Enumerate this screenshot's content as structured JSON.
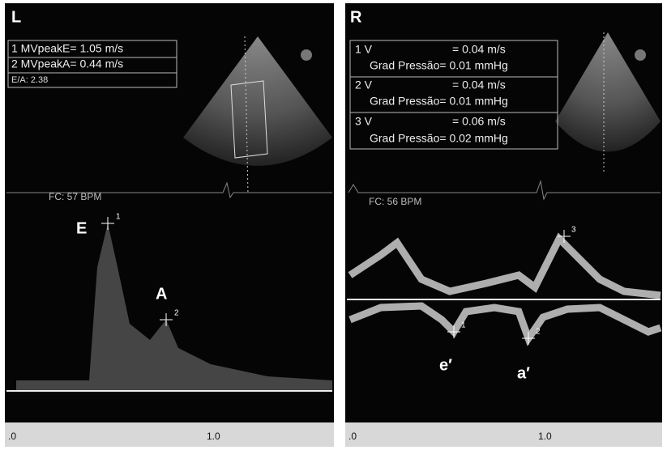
{
  "left": {
    "label": "L",
    "measurements": [
      "1 MVpeakE= 1.05 m/s",
      "2 MVpeakA= 0.44 m/s"
    ],
    "ratio": "E/A:  2.38",
    "heart_rate": "FC: 57 BPM",
    "peaks": [
      "E",
      "A"
    ],
    "markers": [
      "1",
      "2"
    ],
    "axis_ticks": [
      ".0",
      "1.0"
    ]
  },
  "right": {
    "label": "R",
    "measurements": [
      {
        "velocity": "1 V",
        "velocity_value": "= 0.04 m/s",
        "gradient": "Grad Pressão= 0.01 mmHg"
      },
      {
        "velocity": "2 V",
        "velocity_value": "= 0.04 m/s",
        "gradient": "Grad Pressão= 0.01 mmHg"
      },
      {
        "velocity": "3 V",
        "velocity_value": "= 0.06 m/s",
        "gradient": "Grad Pressão= 0.02 mmHg"
      }
    ],
    "heart_rate": "FC: 56 BPM",
    "peaks": [
      "e′",
      "a′"
    ],
    "markers": [
      "1",
      "2",
      "3"
    ],
    "axis_ticks": [
      ".0",
      "1.0"
    ]
  }
}
